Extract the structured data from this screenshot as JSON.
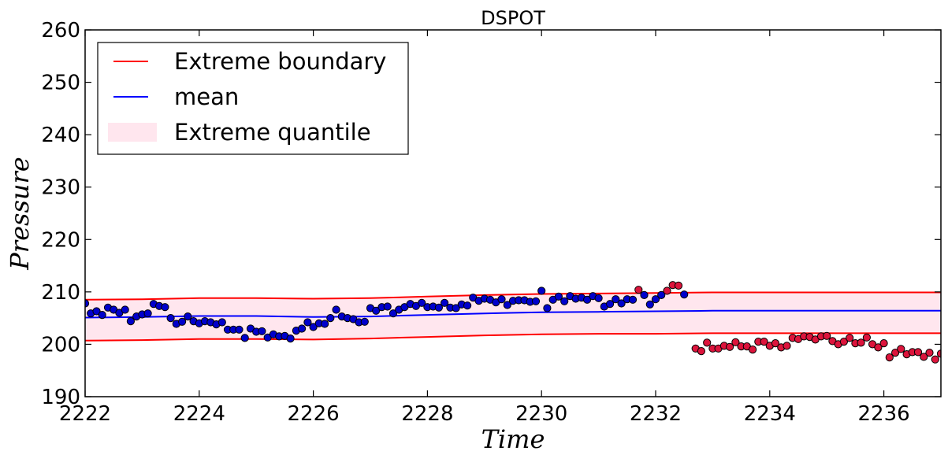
{
  "chart_data": {
    "type": "scatter",
    "title": "DSPOT",
    "xlabel": "Time",
    "ylabel": "Pressure",
    "xlim": [
      2222,
      2237
    ],
    "ylim": [
      190,
      260
    ],
    "x_ticks": [
      2222,
      2224,
      2226,
      2228,
      2230,
      2232,
      2234,
      2236
    ],
    "y_ticks": [
      190,
      200,
      210,
      220,
      230,
      240,
      250,
      260
    ],
    "grid": false,
    "legend": {
      "position": "top-left",
      "entries": [
        {
          "label": "Extreme boundary",
          "kind": "line",
          "color": "#ff0000"
        },
        {
          "label": "mean",
          "kind": "line",
          "color": "#0000ff"
        },
        {
          "label": "Extreme quantile",
          "kind": "patch",
          "color": "#ffe6ee"
        }
      ]
    },
    "upper_boundary": {
      "color": "#ff0000",
      "x": [
        2222,
        2223,
        2224,
        2225,
        2226,
        2227,
        2228,
        2229,
        2230,
        2231,
        2232,
        2233,
        2234,
        2235,
        2236,
        2237
      ],
      "y": [
        208.5,
        208.6,
        208.8,
        208.8,
        208.7,
        208.8,
        209.1,
        209.4,
        209.6,
        209.7,
        209.8,
        209.9,
        209.9,
        209.9,
        209.9,
        209.9
      ]
    },
    "lower_boundary": {
      "color": "#ff0000",
      "x": [
        2222,
        2223,
        2224,
        2225,
        2226,
        2227,
        2228,
        2229,
        2230,
        2231,
        2232,
        2233,
        2234,
        2235,
        2236,
        2237
      ],
      "y": [
        200.7,
        200.8,
        201.0,
        201.0,
        200.9,
        201.1,
        201.4,
        201.7,
        201.9,
        202.0,
        202.0,
        202.1,
        202.1,
        202.1,
        202.1,
        202.1
      ]
    },
    "mean": {
      "color": "#0000ff",
      "x": [
        2222,
        2223,
        2224,
        2225,
        2226,
        2227,
        2228,
        2229,
        2230,
        2231,
        2232,
        2233,
        2234,
        2235,
        2236,
        2237
      ],
      "y": [
        205.1,
        205.2,
        205.4,
        205.4,
        205.2,
        205.3,
        205.6,
        205.9,
        206.1,
        206.2,
        206.3,
        206.4,
        206.4,
        206.4,
        206.4,
        206.4
      ]
    },
    "band_color": "#ffe6ee",
    "series": [
      {
        "color": "#0000cc",
        "points": [
          [
            2222.0,
            207.8
          ],
          [
            2222.1,
            205.9
          ],
          [
            2222.2,
            206.3
          ],
          [
            2222.3,
            205.6
          ],
          [
            2222.4,
            207.0
          ],
          [
            2222.5,
            206.6
          ],
          [
            2222.6,
            206.0
          ],
          [
            2222.7,
            206.6
          ],
          [
            2222.8,
            204.4
          ],
          [
            2222.9,
            205.3
          ],
          [
            2223.0,
            205.7
          ],
          [
            2223.1,
            205.9
          ],
          [
            2223.2,
            207.7
          ],
          [
            2223.3,
            207.3
          ],
          [
            2223.4,
            207.1
          ],
          [
            2223.5,
            205.0
          ],
          [
            2223.6,
            203.9
          ],
          [
            2223.7,
            204.3
          ],
          [
            2223.8,
            205.3
          ],
          [
            2223.9,
            204.4
          ],
          [
            2224.0,
            204.0
          ],
          [
            2224.1,
            204.4
          ],
          [
            2224.2,
            204.2
          ],
          [
            2224.3,
            203.8
          ],
          [
            2224.4,
            204.2
          ],
          [
            2224.5,
            202.8
          ],
          [
            2224.6,
            202.8
          ],
          [
            2224.7,
            202.8
          ],
          [
            2224.8,
            201.2
          ],
          [
            2224.9,
            203.0
          ],
          [
            2225.0,
            202.4
          ],
          [
            2225.1,
            202.5
          ],
          [
            2225.2,
            201.3
          ],
          [
            2225.3,
            201.9
          ],
          [
            2225.4,
            201.5
          ],
          [
            2225.5,
            201.6
          ],
          [
            2225.6,
            201.1
          ],
          [
            2225.7,
            202.6
          ],
          [
            2225.8,
            203.0
          ],
          [
            2225.9,
            204.2
          ],
          [
            2226.0,
            203.3
          ],
          [
            2226.1,
            204.0
          ],
          [
            2226.2,
            203.9
          ],
          [
            2226.3,
            205.0
          ],
          [
            2226.4,
            206.6
          ],
          [
            2226.5,
            205.3
          ],
          [
            2226.6,
            205.0
          ],
          [
            2226.7,
            204.8
          ],
          [
            2226.8,
            204.2
          ],
          [
            2226.9,
            204.3
          ],
          [
            2227.0,
            206.9
          ],
          [
            2227.1,
            206.4
          ],
          [
            2227.2,
            207.1
          ],
          [
            2227.3,
            207.2
          ],
          [
            2227.4,
            205.9
          ],
          [
            2227.5,
            206.6
          ],
          [
            2227.6,
            207.1
          ],
          [
            2227.7,
            207.7
          ],
          [
            2227.8,
            207.3
          ],
          [
            2227.9,
            207.9
          ],
          [
            2228.0,
            207.1
          ],
          [
            2228.1,
            207.2
          ],
          [
            2228.2,
            207.0
          ],
          [
            2228.3,
            207.9
          ],
          [
            2228.4,
            207.0
          ],
          [
            2228.5,
            206.9
          ],
          [
            2228.6,
            207.6
          ],
          [
            2228.7,
            207.4
          ],
          [
            2228.8,
            208.9
          ],
          [
            2228.9,
            208.3
          ],
          [
            2229.0,
            208.7
          ],
          [
            2229.1,
            208.5
          ],
          [
            2229.2,
            208.0
          ],
          [
            2229.3,
            208.6
          ],
          [
            2229.4,
            207.5
          ],
          [
            2229.5,
            208.3
          ],
          [
            2229.6,
            208.4
          ],
          [
            2229.7,
            208.4
          ],
          [
            2229.8,
            208.1
          ],
          [
            2229.9,
            208.2
          ],
          [
            2230.0,
            210.2
          ],
          [
            2230.1,
            206.9
          ],
          [
            2230.2,
            208.5
          ],
          [
            2230.3,
            209.1
          ],
          [
            2230.4,
            208.2
          ],
          [
            2230.5,
            209.2
          ],
          [
            2230.6,
            208.7
          ],
          [
            2230.7,
            208.9
          ],
          [
            2230.8,
            208.5
          ],
          [
            2230.9,
            209.2
          ],
          [
            2231.0,
            208.8
          ],
          [
            2231.1,
            207.2
          ],
          [
            2231.2,
            207.7
          ],
          [
            2231.3,
            208.6
          ],
          [
            2231.4,
            207.8
          ],
          [
            2231.5,
            208.6
          ],
          [
            2231.6,
            208.5
          ],
          [
            2231.8,
            209.4
          ],
          [
            2231.9,
            207.6
          ],
          [
            2232.0,
            208.6
          ],
          [
            2232.1,
            209.4
          ],
          [
            2232.5,
            209.5
          ]
        ]
      },
      {
        "color": "#dc143c",
        "points": [
          [
            2231.7,
            210.4
          ],
          [
            2232.2,
            210.2
          ],
          [
            2232.3,
            211.3
          ],
          [
            2232.4,
            211.2
          ],
          [
            2232.7,
            199.2
          ],
          [
            2232.8,
            198.7
          ],
          [
            2232.9,
            200.3
          ],
          [
            2233.0,
            199.2
          ],
          [
            2233.1,
            199.2
          ],
          [
            2233.2,
            199.7
          ],
          [
            2233.3,
            199.5
          ],
          [
            2233.4,
            200.4
          ],
          [
            2233.5,
            199.6
          ],
          [
            2233.6,
            199.6
          ],
          [
            2233.7,
            199.0
          ],
          [
            2233.8,
            200.5
          ],
          [
            2233.9,
            200.5
          ],
          [
            2234.0,
            199.7
          ],
          [
            2234.1,
            200.2
          ],
          [
            2234.2,
            199.4
          ],
          [
            2234.3,
            199.7
          ],
          [
            2234.4,
            201.2
          ],
          [
            2234.5,
            201.0
          ],
          [
            2234.6,
            201.5
          ],
          [
            2234.7,
            201.4
          ],
          [
            2234.8,
            200.9
          ],
          [
            2234.9,
            201.5
          ],
          [
            2235.0,
            201.6
          ],
          [
            2235.1,
            200.6
          ],
          [
            2235.2,
            200.0
          ],
          [
            2235.3,
            200.5
          ],
          [
            2235.4,
            201.2
          ],
          [
            2235.5,
            200.2
          ],
          [
            2235.6,
            200.3
          ],
          [
            2235.7,
            201.3
          ],
          [
            2235.8,
            200.0
          ],
          [
            2235.9,
            199.4
          ],
          [
            2236.0,
            200.2
          ],
          [
            2236.1,
            197.5
          ],
          [
            2236.2,
            198.4
          ],
          [
            2236.3,
            199.1
          ],
          [
            2236.4,
            198.1
          ],
          [
            2236.5,
            198.5
          ],
          [
            2236.6,
            198.5
          ],
          [
            2236.7,
            197.6
          ],
          [
            2236.8,
            198.4
          ],
          [
            2236.9,
            197.1
          ],
          [
            2237.0,
            198.2
          ]
        ]
      }
    ]
  }
}
